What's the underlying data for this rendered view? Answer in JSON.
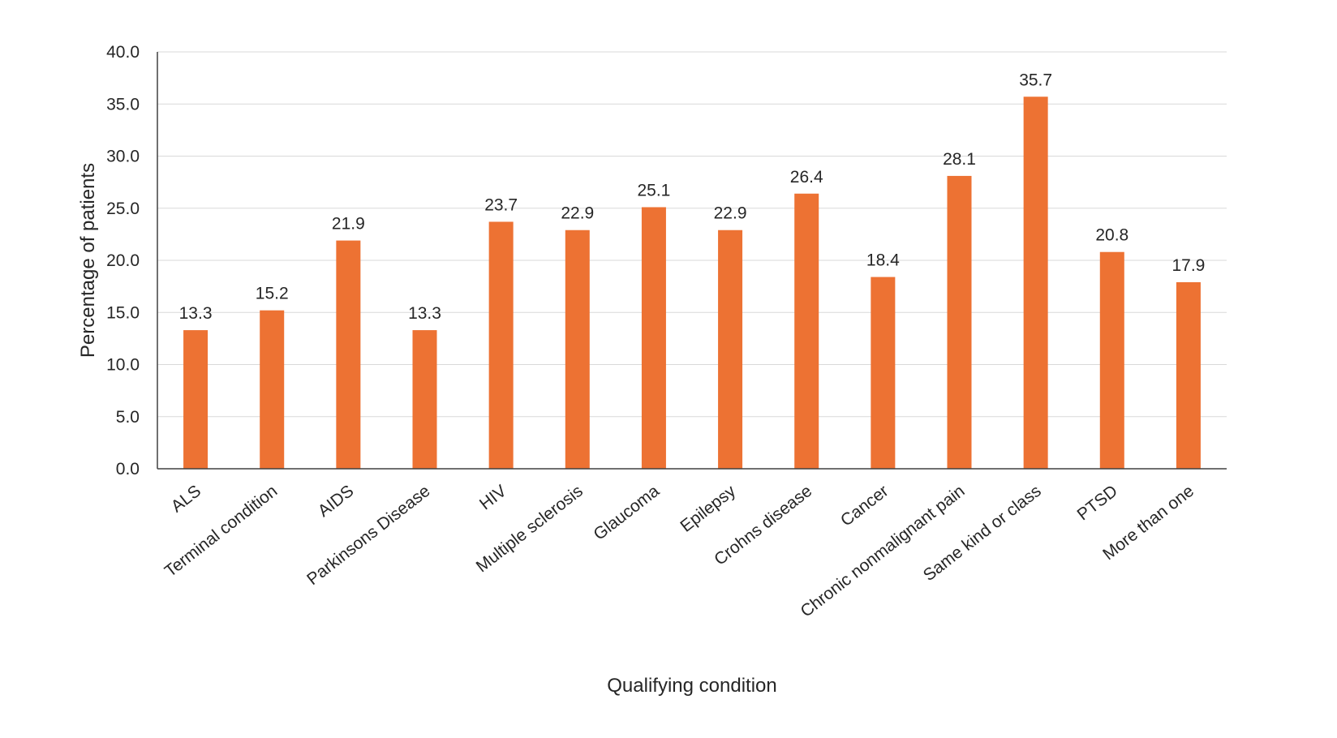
{
  "chart_data": {
    "type": "bar",
    "title": "",
    "xlabel": "Qualifying condition",
    "ylabel": "Percentage of patients",
    "ylim": [
      0,
      40
    ],
    "ytick_step": 5,
    "ytick_labels": [
      "0.0",
      "5.0",
      "10.0",
      "15.0",
      "20.0",
      "25.0",
      "30.0",
      "35.0",
      "40.0"
    ],
    "grid": true,
    "legend": "none",
    "bar_color": "#ED7233",
    "categories": [
      "ALS",
      "Terminal condition",
      "AIDS",
      "Parkinsons Disease",
      "HIV",
      "Multiple sclerosis",
      "Glaucoma",
      "Epilepsy",
      "Crohns disease",
      "Cancer",
      "Chronic nonmalignant pain",
      "Same kind or class",
      "PTSD",
      "More than one"
    ],
    "values": [
      13.3,
      15.2,
      21.9,
      13.3,
      23.7,
      22.9,
      25.1,
      22.9,
      26.4,
      18.4,
      28.1,
      35.7,
      20.8,
      17.9
    ],
    "value_labels": [
      "13.3",
      "15.2",
      "21.9",
      "13.3",
      "23.7",
      "22.9",
      "25.1",
      "22.9",
      "26.4",
      "18.4",
      "28.1",
      "35.7",
      "20.8",
      "17.9"
    ]
  }
}
